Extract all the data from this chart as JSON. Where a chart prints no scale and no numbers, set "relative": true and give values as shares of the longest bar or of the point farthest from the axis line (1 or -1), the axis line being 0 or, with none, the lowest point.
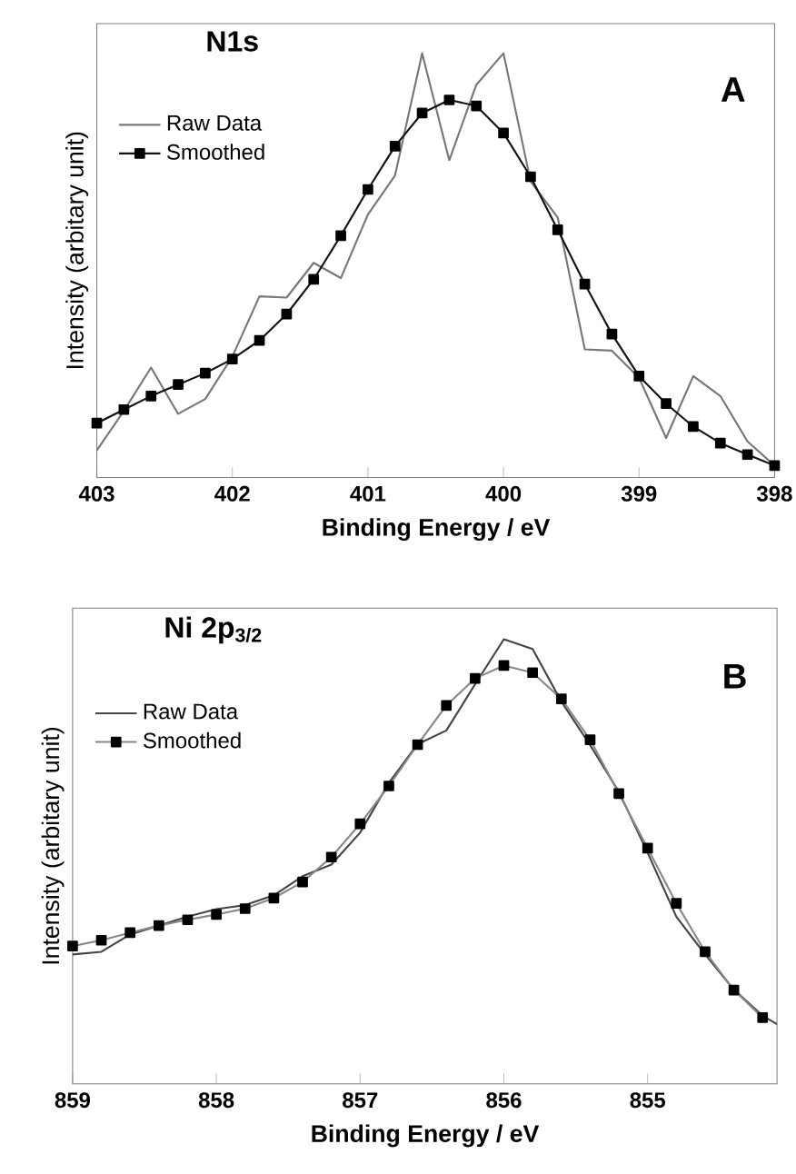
{
  "chart_data": [
    {
      "type": "line",
      "title": "N1s",
      "xlabel": "Binding Energy / eV",
      "ylabel": "Intensity (arbitary unit)",
      "annotations": [
        "A"
      ],
      "relative": true,
      "xlim": [
        403,
        398
      ],
      "xticks": [
        403,
        402,
        401,
        400,
        399,
        398
      ],
      "legend": "top left",
      "grid": false,
      "series": [
        {
          "name": "Raw Data",
          "color": "#777777",
          "marker": "none",
          "line_style": "solid",
          "x": [
            403,
            402.8,
            402.6,
            402.4,
            402.2,
            402.0,
            401.8,
            401.6,
            401.4,
            401.2,
            401.0,
            400.8,
            400.6,
            400.4,
            400.2,
            400.0,
            399.8,
            399.6,
            399.4,
            399.2,
            399.0,
            398.8,
            398.6,
            398.4,
            398.2,
            398.0
          ],
          "values": [
            0.064,
            0.157,
            0.259,
            0.15,
            0.185,
            0.285,
            0.427,
            0.424,
            0.506,
            0.47,
            0.62,
            0.712,
            1.0,
            0.748,
            0.926,
            1.0,
            0.698,
            0.613,
            0.302,
            0.299,
            0.235,
            0.093,
            0.239,
            0.192,
            0.085,
            0.028
          ]
        },
        {
          "name": "Smoothed",
          "color": "#111111",
          "marker": "square",
          "line_style": "solid",
          "x": [
            403,
            402.8,
            402.6,
            402.4,
            402.2,
            402.0,
            401.8,
            401.6,
            401.4,
            401.2,
            401.0,
            400.8,
            400.6,
            400.4,
            400.2,
            400.0,
            399.8,
            399.6,
            399.4,
            399.2,
            399.0,
            398.8,
            398.6,
            398.4,
            398.2,
            398.0
          ],
          "values": [
            0.128,
            0.16,
            0.192,
            0.219,
            0.246,
            0.279,
            0.323,
            0.385,
            0.467,
            0.57,
            0.679,
            0.781,
            0.859,
            0.89,
            0.876,
            0.812,
            0.709,
            0.584,
            0.456,
            0.338,
            0.239,
            0.174,
            0.12,
            0.081,
            0.054,
            0.028
          ]
        }
      ]
    },
    {
      "type": "line",
      "title": "Ni 2p$_{3/2}$",
      "xlabel": "Binding Energy / eV",
      "ylabel": "Intensity (arbitary unit)",
      "annotations": [
        "B"
      ],
      "relative": true,
      "xlim": [
        859,
        854.1
      ],
      "xticks": [
        859,
        858,
        857,
        856,
        855
      ],
      "legend": "top left",
      "grid": false,
      "series": [
        {
          "name": "Raw Data",
          "color": "#444444",
          "marker": "none",
          "line_style": "solid",
          "x": [
            859,
            858.8,
            858.6,
            858.4,
            858.2,
            858.0,
            857.8,
            857.6,
            857.4,
            857.2,
            857.0,
            856.8,
            856.6,
            856.4,
            856.2,
            856.0,
            855.8,
            855.6,
            855.4,
            855.2,
            855.0,
            854.8,
            854.6,
            854.4,
            854.2,
            854.1
          ],
          "values": [
            0.291,
            0.297,
            0.336,
            0.356,
            0.376,
            0.393,
            0.402,
            0.424,
            0.467,
            0.493,
            0.565,
            0.677,
            0.764,
            0.795,
            0.899,
            1.0,
            0.978,
            0.86,
            0.762,
            0.657,
            0.52,
            0.376,
            0.291,
            0.212,
            0.153,
            0.134
          ]
        },
        {
          "name": "Smoothed",
          "color": "#888888",
          "marker": "square",
          "line_style": "solid",
          "x": [
            859,
            858.8,
            858.6,
            858.4,
            858.2,
            858.0,
            857.8,
            857.6,
            857.4,
            857.2,
            857.0,
            856.8,
            856.6,
            856.4,
            856.2,
            856.0,
            855.8,
            855.6,
            855.4,
            855.2,
            855.0,
            854.8,
            854.6,
            854.4,
            854.2
          ],
          "values": [
            0.31,
            0.323,
            0.34,
            0.356,
            0.369,
            0.381,
            0.394,
            0.418,
            0.454,
            0.51,
            0.585,
            0.67,
            0.763,
            0.851,
            0.912,
            0.941,
            0.925,
            0.866,
            0.774,
            0.653,
            0.53,
            0.406,
            0.297,
            0.211,
            0.149
          ]
        }
      ]
    }
  ]
}
